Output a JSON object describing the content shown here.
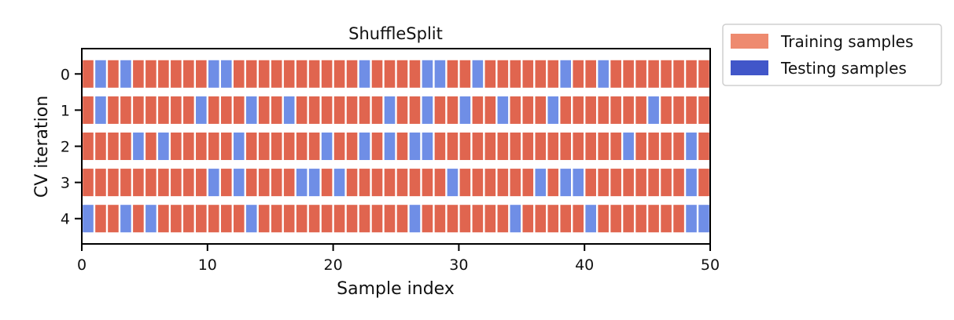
{
  "chart_data": {
    "type": "heatmap",
    "title": "ShuffleSplit",
    "xlabel": "Sample index",
    "ylabel": "CV iteration",
    "xlim": [
      0,
      50
    ],
    "xticks": [
      0,
      10,
      20,
      30,
      40,
      50
    ],
    "yticks": [
      0,
      1,
      2,
      3,
      4
    ],
    "n_samples": 50,
    "grid": false,
    "legend": {
      "placement": "outside-top-right",
      "entries": [
        {
          "label": "Training samples",
          "color": "#ee8a6f"
        },
        {
          "label": "Testing samples",
          "color": "#4156c9"
        }
      ]
    },
    "colors": {
      "train": "#e0654f",
      "test": "#6f8ee6"
    },
    "iterations": [
      {
        "index": 0,
        "test_indices": [
          1,
          3,
          10,
          11,
          22,
          27,
          28,
          31,
          38,
          41
        ]
      },
      {
        "index": 1,
        "test_indices": [
          1,
          9,
          13,
          16,
          24,
          27,
          30,
          33,
          37,
          45
        ]
      },
      {
        "index": 2,
        "test_indices": [
          4,
          6,
          12,
          19,
          22,
          24,
          26,
          27,
          43,
          48
        ]
      },
      {
        "index": 3,
        "test_indices": [
          10,
          12,
          17,
          18,
          20,
          29,
          36,
          38,
          39,
          48
        ]
      },
      {
        "index": 4,
        "test_indices": [
          0,
          3,
          5,
          13,
          26,
          34,
          40,
          48,
          49
        ]
      }
    ]
  }
}
